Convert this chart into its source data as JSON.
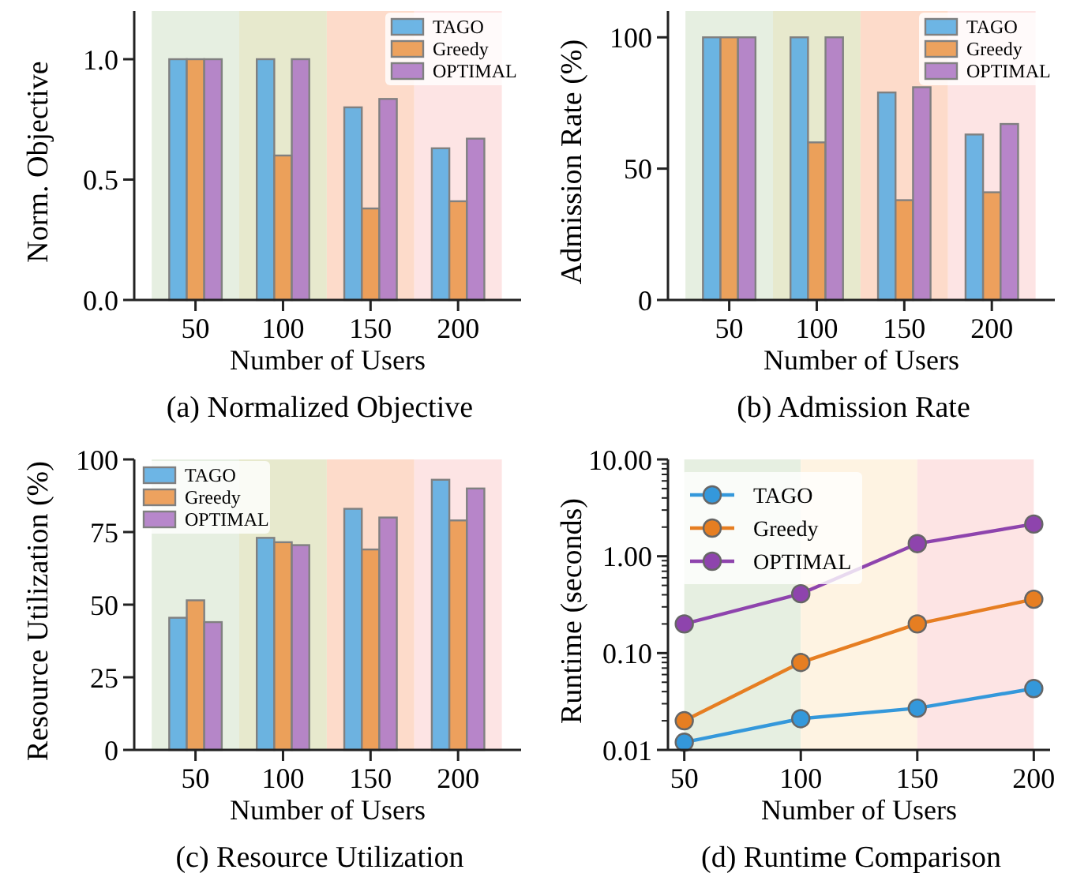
{
  "chart_data": [
    {
      "type": "bar",
      "title": "(a) Normalized Objective",
      "xlabel": "Number of Users",
      "ylabel": "Norm. Objective",
      "categories": [
        "50",
        "100",
        "150",
        "200"
      ],
      "ylim": [
        0,
        1.2
      ],
      "yticks": [
        {
          "value": 0,
          "label": "0.0"
        },
        {
          "value": 0.5,
          "label": "0.5"
        },
        {
          "value": 1,
          "label": "1.0"
        }
      ],
      "legend": "top right",
      "series": [
        {
          "name": "TAGO",
          "color": "#5dade2",
          "values": [
            1,
            1,
            0.8,
            0.63
          ]
        },
        {
          "name": "Greedy",
          "color": "#eb984e",
          "values": [
            1,
            0.6,
            0.38,
            0.41
          ]
        },
        {
          "name": "OPTIMAL",
          "color": "#af7ac5",
          "values": [
            1,
            1,
            0.835,
            0.67
          ]
        }
      ],
      "bands": [
        {
          "axis": "x",
          "from": "50",
          "to": "50",
          "color": "#e6efe1"
        },
        {
          "axis": "x",
          "from": "100",
          "to": "100",
          "color": "#e7e9cd"
        },
        {
          "axis": "x",
          "from": "150",
          "to": "150",
          "color": "#fddbca"
        },
        {
          "axis": "x",
          "from": "200",
          "to": "200",
          "color": "#fde4e4"
        }
      ]
    },
    {
      "type": "bar",
      "title": "(b) Admission Rate",
      "xlabel": "Number of Users",
      "ylabel": "Admission Rate (%)",
      "categories": [
        "50",
        "100",
        "150",
        "200"
      ],
      "ylim": [
        0,
        110
      ],
      "yticks": [
        0,
        50,
        100
      ],
      "legend": "top right",
      "series": [
        {
          "name": "TAGO",
          "color": "#5dade2",
          "values": [
            100,
            100,
            79,
            63
          ]
        },
        {
          "name": "Greedy",
          "color": "#eb984e",
          "values": [
            100,
            60,
            38,
            41
          ]
        },
        {
          "name": "OPTIMAL",
          "color": "#af7ac5",
          "values": [
            100,
            100,
            81,
            67
          ]
        }
      ],
      "bands": [
        {
          "axis": "x",
          "from": "50",
          "to": "50",
          "color": "#e6efe1"
        },
        {
          "axis": "x",
          "from": "100",
          "to": "100",
          "color": "#e7e9cd"
        },
        {
          "axis": "x",
          "from": "150",
          "to": "150",
          "color": "#fddbca"
        },
        {
          "axis": "x",
          "from": "200",
          "to": "200",
          "color": "#fde4e4"
        }
      ]
    },
    {
      "type": "bar",
      "title": "(c) Resource Utilization",
      "xlabel": "Number of Users",
      "ylabel": "Resource Utilization (%)",
      "categories": [
        "50",
        "100",
        "150",
        "200"
      ],
      "ylim": [
        0,
        100
      ],
      "yticks": [
        0,
        25,
        50,
        75,
        100
      ],
      "legend": "top left",
      "series": [
        {
          "name": "TAGO",
          "color": "#5dade2",
          "values": [
            45.5,
            73,
            83,
            93
          ]
        },
        {
          "name": "Greedy",
          "color": "#eb984e",
          "values": [
            51.5,
            71.5,
            69,
            79
          ]
        },
        {
          "name": "OPTIMAL",
          "color": "#af7ac5",
          "values": [
            44,
            70.5,
            80,
            90
          ]
        }
      ],
      "bands": [
        {
          "axis": "x",
          "from": "50",
          "to": "50",
          "color": "#e6efe1"
        },
        {
          "axis": "x",
          "from": "100",
          "to": "100",
          "color": "#e7e9cd"
        },
        {
          "axis": "x",
          "from": "150",
          "to": "150",
          "color": "#fddbca"
        },
        {
          "axis": "x",
          "from": "200",
          "to": "200",
          "color": "#fde4e4"
        }
      ]
    },
    {
      "type": "line",
      "title": "(d) Runtime Comparison",
      "xlabel": "Number of Users",
      "ylabel": "Runtime (seconds)",
      "x": [
        50,
        100,
        150,
        200
      ],
      "xlim": [
        43,
        207
      ],
      "xticks": [
        50,
        100,
        150,
        200
      ],
      "ylim": [
        0.01,
        10
      ],
      "log": "y",
      "marker": "circle",
      "legend": "top left",
      "yticks": [
        0.01,
        {
          "value": 0.02,
          "label": null
        },
        {
          "value": 0.03,
          "label": null
        },
        {
          "value": 0.04,
          "label": null
        },
        {
          "value": 0.05,
          "label": null
        },
        {
          "value": 0.06,
          "label": null
        },
        {
          "value": 0.07,
          "label": null
        },
        {
          "value": 0.08,
          "label": null
        },
        {
          "value": 0.09,
          "label": null
        },
        {
          "value": 0.1,
          "label": "0.10"
        },
        {
          "value": 0.2,
          "label": null
        },
        {
          "value": 0.3,
          "label": null
        },
        {
          "value": 0.4,
          "label": null
        },
        {
          "value": 0.5,
          "label": null
        },
        {
          "value": 0.6,
          "label": null
        },
        {
          "value": 0.7,
          "label": null
        },
        {
          "value": 0.8,
          "label": null
        },
        {
          "value": 0.9,
          "label": null
        },
        {
          "value": 1,
          "label": "1.00"
        },
        {
          "value": 2,
          "label": null
        },
        {
          "value": 3,
          "label": null
        },
        {
          "value": 4,
          "label": null
        },
        {
          "value": 5,
          "label": null
        },
        {
          "value": 6,
          "label": null
        },
        {
          "value": 7,
          "label": null
        },
        {
          "value": 8,
          "label": null
        },
        {
          "value": 9,
          "label": null
        },
        {
          "value": 10,
          "label": "10.00"
        }
      ],
      "series": [
        {
          "name": "TAGO",
          "color": "#3498db",
          "values": [
            0.012,
            0.021,
            0.027,
            0.043
          ]
        },
        {
          "name": "Greedy",
          "color": "#e67e22",
          "values": [
            0.02,
            0.08,
            0.2,
            0.36
          ]
        },
        {
          "name": "OPTIMAL",
          "color": "#8e44ad",
          "values": [
            0.2,
            0.41,
            1.35,
            2.15
          ]
        }
      ],
      "bands": [
        {
          "axis": "x",
          "from": 50,
          "to": 100,
          "color": "#e6efe1"
        },
        {
          "axis": "x",
          "from": 100,
          "to": 150,
          "color": "#fef3e2"
        },
        {
          "axis": "x",
          "from": 150,
          "to": 200,
          "color": "#fde4e4"
        }
      ]
    }
  ]
}
